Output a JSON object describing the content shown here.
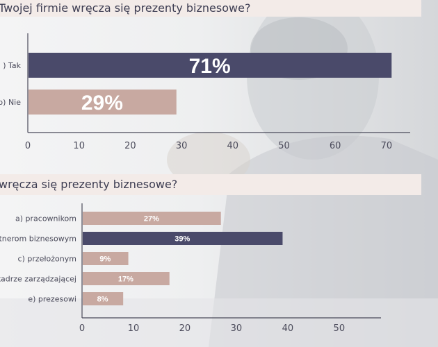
{
  "colors": {
    "dark": "#4a4a6a",
    "pink": "#c8a9a1",
    "band": "#f3ebe8",
    "axis": "#4a4a5a"
  },
  "question1": "Twojej firmie wręcza się prezenty biznesowe?",
  "question2": "wręcza się prezenty biznesowe?",
  "chart_data": [
    {
      "type": "bar",
      "orientation": "horizontal",
      "categories": [
        "a) Tak",
        "b) Nie"
      ],
      "category_labels_visible": [
        ") Tak",
        "b) Nie"
      ],
      "values": [
        71,
        29
      ],
      "value_labels": [
        "71%",
        "29%"
      ],
      "colors": [
        "dark",
        "pink"
      ],
      "xlim": [
        0,
        73
      ],
      "xticks": [
        "0",
        "10",
        "20",
        "30",
        "40",
        "50",
        "60",
        "70"
      ]
    },
    {
      "type": "bar",
      "orientation": "horizontal",
      "categories": [
        "a) pracownikom",
        "b) partnerom biznesowym",
        "c) przełożonym",
        "d) kadrze zarządzającej",
        "e) prezesowi"
      ],
      "category_labels_visible": [
        "a) pracownikom",
        "rtnerom biznesowym",
        "c) przełożonym",
        "kadrze zarządzającej",
        "e) prezesowi"
      ],
      "values": [
        27,
        39,
        9,
        17,
        8
      ],
      "value_labels": [
        "27%",
        "39%",
        "9%",
        "17%",
        "8%"
      ],
      "colors": [
        "pink",
        "dark",
        "pink",
        "pink",
        "pink"
      ],
      "xlim": [
        0,
        58
      ],
      "xticks": [
        "0",
        "10",
        "20",
        "30",
        "40",
        "50"
      ]
    }
  ]
}
